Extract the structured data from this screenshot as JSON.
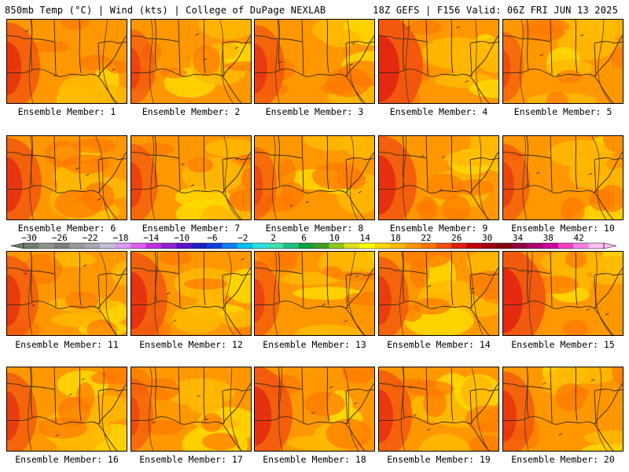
{
  "header": {
    "left": "850mb Temp (°C) | Wind (kts) | College of DuPage NEXLAB",
    "right": "18Z GEFS | F156 Valid: 06Z FRI JUN 13 2025"
  },
  "members": [
    {
      "label": "Ensemble Member: 1",
      "red_west": 0.55
    },
    {
      "label": "Ensemble Member: 2",
      "red_west": 0.25
    },
    {
      "label": "Ensemble Member: 3",
      "red_west": 0.45
    },
    {
      "label": "Ensemble Member: 4",
      "red_west": 0.9
    },
    {
      "label": "Ensemble Member: 5",
      "red_west": 0.15
    },
    {
      "label": "Ensemble Member: 6",
      "red_west": 0.6
    },
    {
      "label": "Ensemble Member: 7",
      "red_west": 0.35
    },
    {
      "label": "Ensemble Member: 8",
      "red_west": 0.2
    },
    {
      "label": "Ensemble Member: 9",
      "red_west": 0.7
    },
    {
      "label": "Ensemble Member: 10",
      "red_west": 0.35
    },
    {
      "label": "Ensemble Member: 11",
      "red_west": 0.5
    },
    {
      "label": "Ensemble Member: 12",
      "red_west": 0.65
    },
    {
      "label": "Ensemble Member: 13",
      "red_west": 0.3
    },
    {
      "label": "Ensemble Member: 14",
      "red_west": 0.45
    },
    {
      "label": "Ensemble Member: 15",
      "red_west": 0.85
    },
    {
      "label": "Ensemble Member: 16",
      "red_west": 0.45
    },
    {
      "label": "Ensemble Member: 17",
      "red_west": 0.2
    },
    {
      "label": "Ensemble Member: 18",
      "red_west": 0.7
    },
    {
      "label": "Ensemble Member: 19",
      "red_west": 0.55
    },
    {
      "label": "Ensemble Member: 20",
      "red_west": 0.5
    }
  ],
  "colorbar": {
    "labels": [
      "-30",
      "-26",
      "-22",
      "-18",
      "-14",
      "-10",
      "-6",
      "-2",
      "2",
      "6",
      "10",
      "14",
      "18",
      "22",
      "26",
      "30",
      "34",
      "38",
      "42"
    ],
    "colors": [
      "#6e7d6e",
      "#8a968a",
      "#7d7d7d",
      "#9a9a9a",
      "#a8a8b4",
      "#c0c0d8",
      "#d89cf0",
      "#e060f0",
      "#c030e0",
      "#9020d0",
      "#6010c8",
      "#2020c0",
      "#1040e0",
      "#1080f0",
      "#00c0f0",
      "#30e0e0",
      "#40e0b0",
      "#20c080",
      "#10a040",
      "#40a020",
      "#90c820",
      "#e0e020",
      "#ffff00",
      "#ffd800",
      "#ffb800",
      "#ff9800",
      "#ff7800",
      "#f05010",
      "#e02010",
      "#c00010",
      "#a00010",
      "#800010",
      "#900040",
      "#b00070",
      "#d000a0",
      "#f040c0",
      "#ff80e0",
      "#ffc0f0"
    ]
  },
  "palette": {
    "yellow": "#ffd800",
    "light_orange": "#ffb800",
    "orange": "#ff9800",
    "dark_orange": "#ff7800",
    "red_orange": "#f05010",
    "red": "#e02010",
    "lines": "#3a2a1a"
  }
}
